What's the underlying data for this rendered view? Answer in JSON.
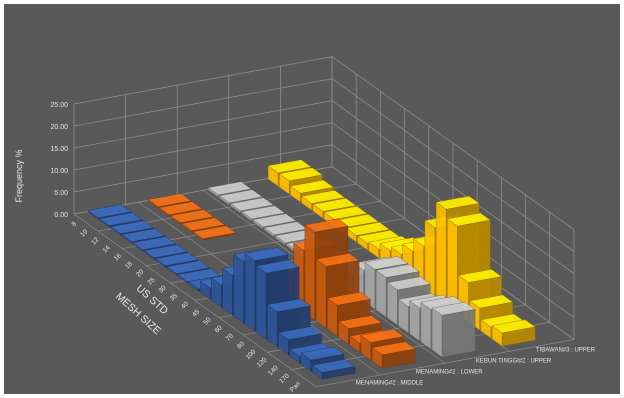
{
  "chart_data": {
    "type": "bar",
    "subtype": "3d-column",
    "title": "",
    "zlabel": "Frequency %",
    "xlabel": [
      "US STD",
      "MESH SIZE"
    ],
    "zlim": [
      0,
      25
    ],
    "zticks": [
      "0.00",
      "5.00",
      "10.00",
      "15.00",
      "20.00",
      "25.00"
    ],
    "categories": [
      "8",
      "10",
      "12",
      "14",
      "16",
      "18",
      "20",
      "25",
      "30",
      "35",
      "40",
      "45",
      "50",
      "60",
      "70",
      "80",
      "100",
      "120",
      "140",
      "170",
      "Pan"
    ],
    "series": [
      {
        "name": "MENAMING#2 : MIDDLE",
        "color": "#2f5597",
        "values": [
          0.3,
          0.3,
          0.3,
          0.3,
          0.3,
          0.3,
          0.3,
          0.3,
          0.3,
          0.5,
          2.5,
          5.0,
          9.0,
          14.0,
          16.0,
          15.0,
          8.0,
          3.5,
          1.5,
          2.5,
          1.5
        ]
      },
      {
        "name": "MENAMING#2 : LOWER",
        "color": "#c55a11",
        "values": [
          0.3,
          0.3,
          0.3,
          0.3,
          0.3,
          0,
          0,
          0,
          0,
          0,
          1.0,
          3.0,
          7.0,
          14.0,
          20.0,
          14.0,
          7.0,
          3.5,
          2.0,
          4.0,
          3.0
        ]
      },
      {
        "name": "KEBUN TINGGI#2 : UPPER",
        "color": "#a5a5a5",
        "values": [
          0.5,
          0.5,
          0.5,
          0.5,
          0.5,
          0.5,
          0.5,
          0.5,
          0.5,
          0.5,
          0.5,
          1.5,
          4.0,
          7.0,
          9.0,
          9.0,
          8.0,
          6.0,
          7.5,
          9.0,
          9.5
        ]
      },
      {
        "name": "TIBAWAN#3 : UPPER",
        "color": "#ffc000",
        "values": [
          3.0,
          3.0,
          2.0,
          1.5,
          1.5,
          1.5,
          1.5,
          1.5,
          1.5,
          2.0,
          3.5,
          4.5,
          7.0,
          10.0,
          16.0,
          22.0,
          20.0,
          9.0,
          5.0,
          2.5,
          3.0
        ]
      }
    ],
    "grid": true,
    "background": "#595959",
    "gridColor": "#8c8c8c",
    "textColor": "#e6e6e6"
  }
}
